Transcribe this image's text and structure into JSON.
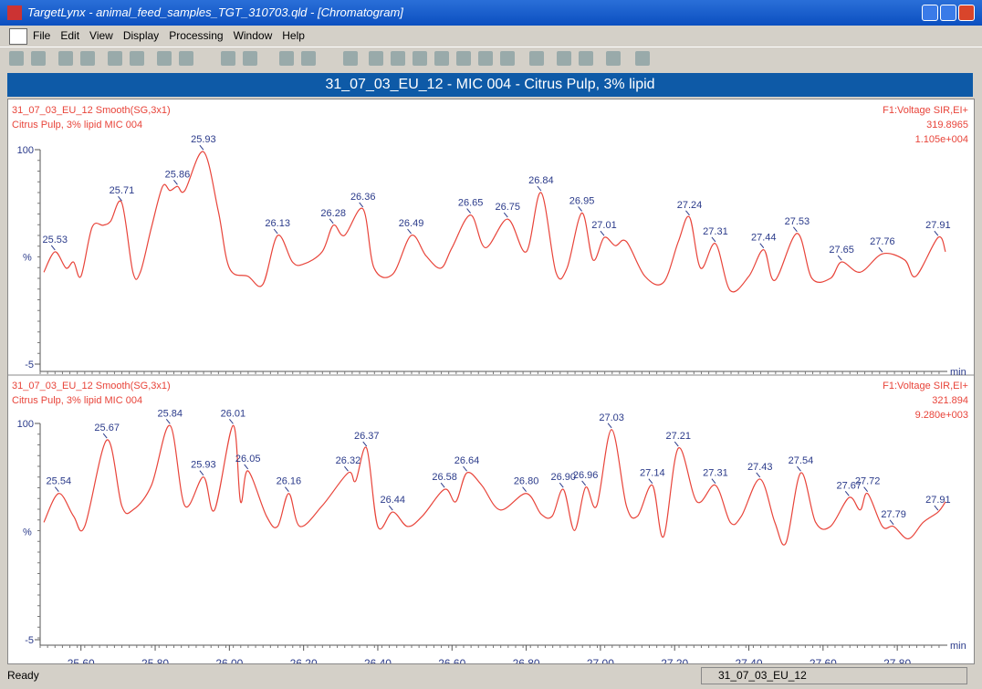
{
  "window": {
    "title": "TargetLynx - animal_feed_samples_TGT_310703.qld - [Chromatogram]",
    "menu": [
      "File",
      "Edit",
      "View",
      "Display",
      "Processing",
      "Window",
      "Help"
    ],
    "heading": "31_07_03_EU_12 - MIC 004 - Citrus Pulp, 3% lipid",
    "status": "Ready",
    "status_file": "31_07_03_EU_12"
  },
  "chart_data": [
    {
      "type": "line",
      "color": "#e8443a",
      "header_left": [
        "31_07_03_EU_12  Smooth(SG,3x1)",
        "Citrus Pulp, 3% lipid MIC 004"
      ],
      "header_right": [
        "F1:Voltage SIR,EI+",
        "319.8965",
        "1.105e+004"
      ],
      "ylabel": "%",
      "xlabel": "min",
      "xlim": [
        25.49,
        27.93
      ],
      "ylim": [
        -5,
        100
      ],
      "yticks": [
        100,
        -5
      ],
      "x": [
        25.5,
        25.53,
        25.56,
        25.58,
        25.6,
        25.63,
        25.66,
        25.68,
        25.71,
        25.74,
        25.76,
        25.79,
        25.82,
        25.84,
        25.86,
        25.88,
        25.93,
        25.97,
        26.0,
        26.05,
        26.09,
        26.13,
        26.17,
        26.2,
        26.25,
        26.28,
        26.31,
        26.36,
        26.39,
        26.44,
        26.49,
        26.53,
        26.57,
        26.6,
        26.65,
        26.69,
        26.75,
        26.8,
        26.84,
        26.88,
        26.91,
        26.95,
        26.98,
        27.01,
        27.04,
        27.07,
        27.12,
        27.17,
        27.21,
        27.24,
        27.27,
        27.31,
        27.35,
        27.4,
        27.44,
        27.47,
        27.53,
        27.57,
        27.62,
        27.65,
        27.7,
        27.76,
        27.82,
        27.85,
        27.91,
        27.93
      ],
      "values": [
        40,
        50,
        42,
        45,
        38,
        62,
        63,
        65,
        74,
        40,
        40,
        62,
        82,
        80,
        82,
        80,
        99,
        70,
        42,
        38,
        34,
        58,
        45,
        44,
        50,
        63,
        58,
        71,
        42,
        39,
        58,
        48,
        42,
        52,
        68,
        52,
        66,
        50,
        79,
        40,
        42,
        69,
        46,
        57,
        53,
        55,
        38,
        35,
        55,
        67,
        42,
        54,
        31,
        38,
        51,
        36,
        59,
        37,
        37,
        45,
        40,
        49,
        46,
        38,
        57,
        50
      ],
      "peaks": [
        {
          "label": "25.53",
          "x": 25.53,
          "y": 50
        },
        {
          "label": "25.71",
          "x": 25.71,
          "y": 74
        },
        {
          "label": "25.86",
          "x": 25.86,
          "y": 82
        },
        {
          "label": "25.93",
          "x": 25.93,
          "y": 99
        },
        {
          "label": "26.13",
          "x": 26.13,
          "y": 58
        },
        {
          "label": "26.28",
          "x": 26.28,
          "y": 63
        },
        {
          "label": "26.36",
          "x": 26.36,
          "y": 71
        },
        {
          "label": "26.49",
          "x": 26.49,
          "y": 58
        },
        {
          "label": "26.65",
          "x": 26.65,
          "y": 68
        },
        {
          "label": "26.75",
          "x": 26.75,
          "y": 66
        },
        {
          "label": "26.84",
          "x": 26.84,
          "y": 79
        },
        {
          "label": "26.95",
          "x": 26.95,
          "y": 69
        },
        {
          "label": "27.01",
          "x": 27.01,
          "y": 57
        },
        {
          "label": "27.24",
          "x": 27.24,
          "y": 67
        },
        {
          "label": "27.31",
          "x": 27.31,
          "y": 54
        },
        {
          "label": "27.44",
          "x": 27.44,
          "y": 51
        },
        {
          "label": "27.53",
          "x": 27.53,
          "y": 59
        },
        {
          "label": "27.65",
          "x": 27.65,
          "y": 45
        },
        {
          "label": "27.76",
          "x": 27.76,
          "y": 49
        },
        {
          "label": "27.91",
          "x": 27.91,
          "y": 57
        }
      ]
    },
    {
      "type": "line",
      "color": "#e8443a",
      "header_left": [
        "31_07_03_EU_12  Smooth(SG,3x1)",
        "Citrus Pulp, 3% lipid MIC 004"
      ],
      "header_right": [
        "F1:Voltage SIR,EI+",
        "321.894",
        "9.280e+003"
      ],
      "ylabel": "%",
      "xlabel": "min",
      "xlim": [
        25.49,
        27.93
      ],
      "ylim": [
        -5,
        100
      ],
      "yticks": [
        100,
        -5
      ],
      "xticks": [
        {
          "value": 25.6,
          "label": "25.60"
        },
        {
          "value": 25.8,
          "label": "25.80"
        },
        {
          "value": 26.0,
          "label": "26.00"
        },
        {
          "value": 26.2,
          "label": "26.20"
        },
        {
          "value": 26.4,
          "label": "26.40"
        },
        {
          "value": 26.6,
          "label": "26.60"
        },
        {
          "value": 26.8,
          "label": "26.80"
        },
        {
          "value": 27.0,
          "label": "27.00"
        },
        {
          "value": 27.2,
          "label": "27.20"
        },
        {
          "value": 27.4,
          "label": "27.40"
        },
        {
          "value": 27.6,
          "label": "27.60"
        },
        {
          "value": 27.8,
          "label": "27.80"
        }
      ],
      "x": [
        25.5,
        25.54,
        25.58,
        25.61,
        25.67,
        25.71,
        25.74,
        25.79,
        25.84,
        25.88,
        25.93,
        25.96,
        26.01,
        26.03,
        26.05,
        26.1,
        26.13,
        26.16,
        26.19,
        26.25,
        26.32,
        26.34,
        26.37,
        26.4,
        26.44,
        26.48,
        26.52,
        26.58,
        26.61,
        26.64,
        26.68,
        26.73,
        26.8,
        26.84,
        26.87,
        26.9,
        26.93,
        26.96,
        26.99,
        27.03,
        27.07,
        27.1,
        27.14,
        27.17,
        27.21,
        27.26,
        27.31,
        27.35,
        27.38,
        27.43,
        27.47,
        27.5,
        27.54,
        27.58,
        27.62,
        27.67,
        27.7,
        27.72,
        27.76,
        27.79,
        27.83,
        27.87,
        27.91,
        27.93
      ],
      "values": [
        52,
        66,
        55,
        50,
        92,
        60,
        58,
        70,
        99,
        60,
        74,
        58,
        99,
        62,
        77,
        55,
        50,
        66,
        50,
        60,
        76,
        72,
        88,
        50,
        57,
        50,
        55,
        68,
        62,
        76,
        70,
        58,
        66,
        56,
        55,
        68,
        48,
        69,
        60,
        97,
        60,
        55,
        70,
        45,
        88,
        62,
        70,
        52,
        55,
        73,
        52,
        42,
        76,
        52,
        50,
        64,
        58,
        66,
        50,
        50,
        44,
        52,
        57,
        62
      ],
      "peaks": [
        {
          "label": "25.54",
          "x": 25.54,
          "y": 66
        },
        {
          "label": "25.67",
          "x": 25.67,
          "y": 92
        },
        {
          "label": "25.84",
          "x": 25.84,
          "y": 99
        },
        {
          "label": "25.93",
          "x": 25.93,
          "y": 74
        },
        {
          "label": "26.01",
          "x": 26.01,
          "y": 99
        },
        {
          "label": "26.05",
          "x": 26.05,
          "y": 77
        },
        {
          "label": "26.16",
          "x": 26.16,
          "y": 66
        },
        {
          "label": "26.32",
          "x": 26.32,
          "y": 76
        },
        {
          "label": "26.37",
          "x": 26.37,
          "y": 88
        },
        {
          "label": "26.44",
          "x": 26.44,
          "y": 57
        },
        {
          "label": "26.58",
          "x": 26.58,
          "y": 68
        },
        {
          "label": "26.64",
          "x": 26.64,
          "y": 76
        },
        {
          "label": "26.80",
          "x": 26.8,
          "y": 66
        },
        {
          "label": "26.90",
          "x": 26.9,
          "y": 68
        },
        {
          "label": "26.96",
          "x": 26.96,
          "y": 69
        },
        {
          "label": "27.03",
          "x": 27.03,
          "y": 97
        },
        {
          "label": "27.14",
          "x": 27.14,
          "y": 70
        },
        {
          "label": "27.21",
          "x": 27.21,
          "y": 88
        },
        {
          "label": "27.31",
          "x": 27.31,
          "y": 70
        },
        {
          "label": "27.43",
          "x": 27.43,
          "y": 73
        },
        {
          "label": "27.54",
          "x": 27.54,
          "y": 76
        },
        {
          "label": "27.67",
          "x": 27.67,
          "y": 64
        },
        {
          "label": "27.72",
          "x": 27.72,
          "y": 66
        },
        {
          "label": "27.79",
          "x": 27.79,
          "y": 50
        },
        {
          "label": "27.91",
          "x": 27.91,
          "y": 57
        }
      ]
    }
  ]
}
